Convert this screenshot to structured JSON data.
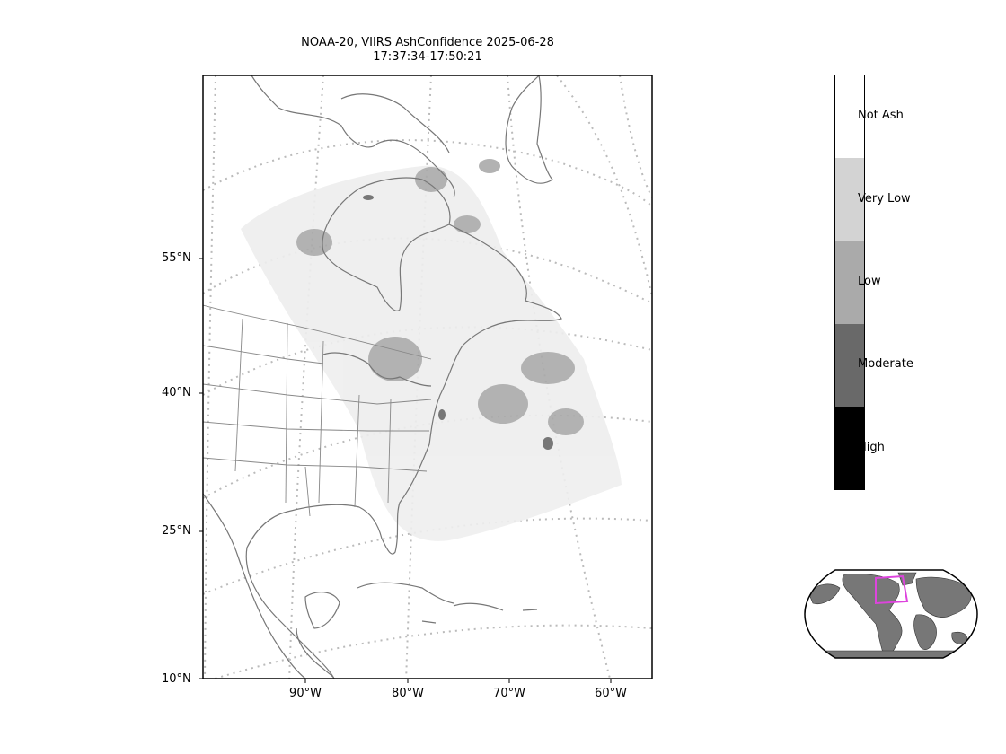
{
  "title": {
    "line1": "NOAA-20, VIIRS AshConfidence 2025-06-28",
    "line2": "17:37:34-17:50:21"
  },
  "map": {
    "lat_labels": [
      "55°N",
      "40°N",
      "25°N",
      "10°N"
    ],
    "lon_labels": [
      "90°W",
      "80°W",
      "70°W",
      "60°W"
    ],
    "colors": {
      "coastline": "#777777",
      "graticule": "#bbbbbb",
      "ash_low": "#aaaaaa",
      "ash_very_low": "#d3d3d3",
      "ash_moderate": "#696969"
    }
  },
  "colorbar": {
    "categories": [
      {
        "label": "Not Ash",
        "color": "#ffffff"
      },
      {
        "label": "Very Low",
        "color": "#d3d3d3"
      },
      {
        "label": "Low",
        "color": "#aaaaaa"
      },
      {
        "label": "Moderate",
        "color": "#696969"
      },
      {
        "label": "High",
        "color": "#000000"
      }
    ]
  },
  "inset": {
    "land_color": "#777777",
    "box_color": "#dd44dd"
  }
}
